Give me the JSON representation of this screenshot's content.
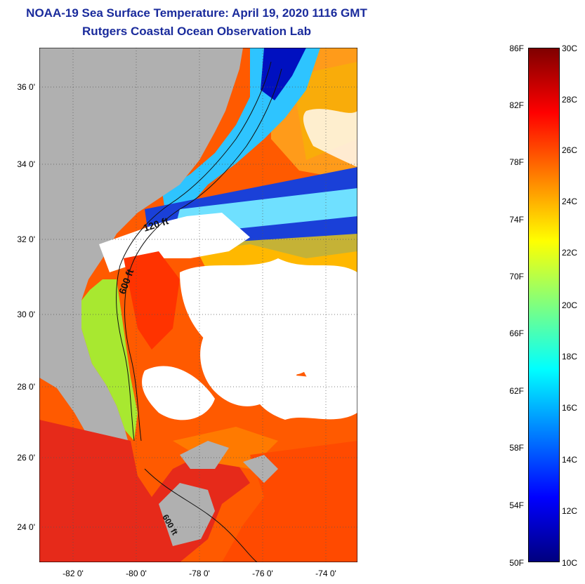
{
  "header": {
    "title": "NOAA-19 Sea Surface Temperature:  April 19, 2020 1116 GMT",
    "subtitle": "Rutgers Coastal Ocean Observation Lab"
  },
  "map": {
    "latitude_labels": [
      "36 0'",
      "34 0'",
      "32 0'",
      "30 0'",
      "28 0'",
      "26 0'",
      "24 0'"
    ],
    "longitude_labels": [
      "-82 0'",
      "-80 0'",
      "-78 0'",
      "-76 0'",
      "-74 0'"
    ],
    "contour_labels": [
      "120 ft",
      "600 ft",
      "600 ft"
    ],
    "colors": {
      "land": "#b0b0b0",
      "cloud": "#ffffff",
      "frame": "#000000"
    }
  },
  "colorbar": {
    "fahrenheit_labels": [
      "86F",
      "82F",
      "78F",
      "74F",
      "70F",
      "66F",
      "62F",
      "58F",
      "54F",
      "50F"
    ],
    "celsius_labels": [
      "30C",
      "28C",
      "26C",
      "24C",
      "22C",
      "20C",
      "18C",
      "16C",
      "14C",
      "12C",
      "10C"
    ],
    "colors": [
      "#00007f",
      "#0000ff",
      "#007fff",
      "#00ffff",
      "#7fff7f",
      "#ffff00",
      "#ff7f00",
      "#ff0000",
      "#7f0000"
    ]
  }
}
